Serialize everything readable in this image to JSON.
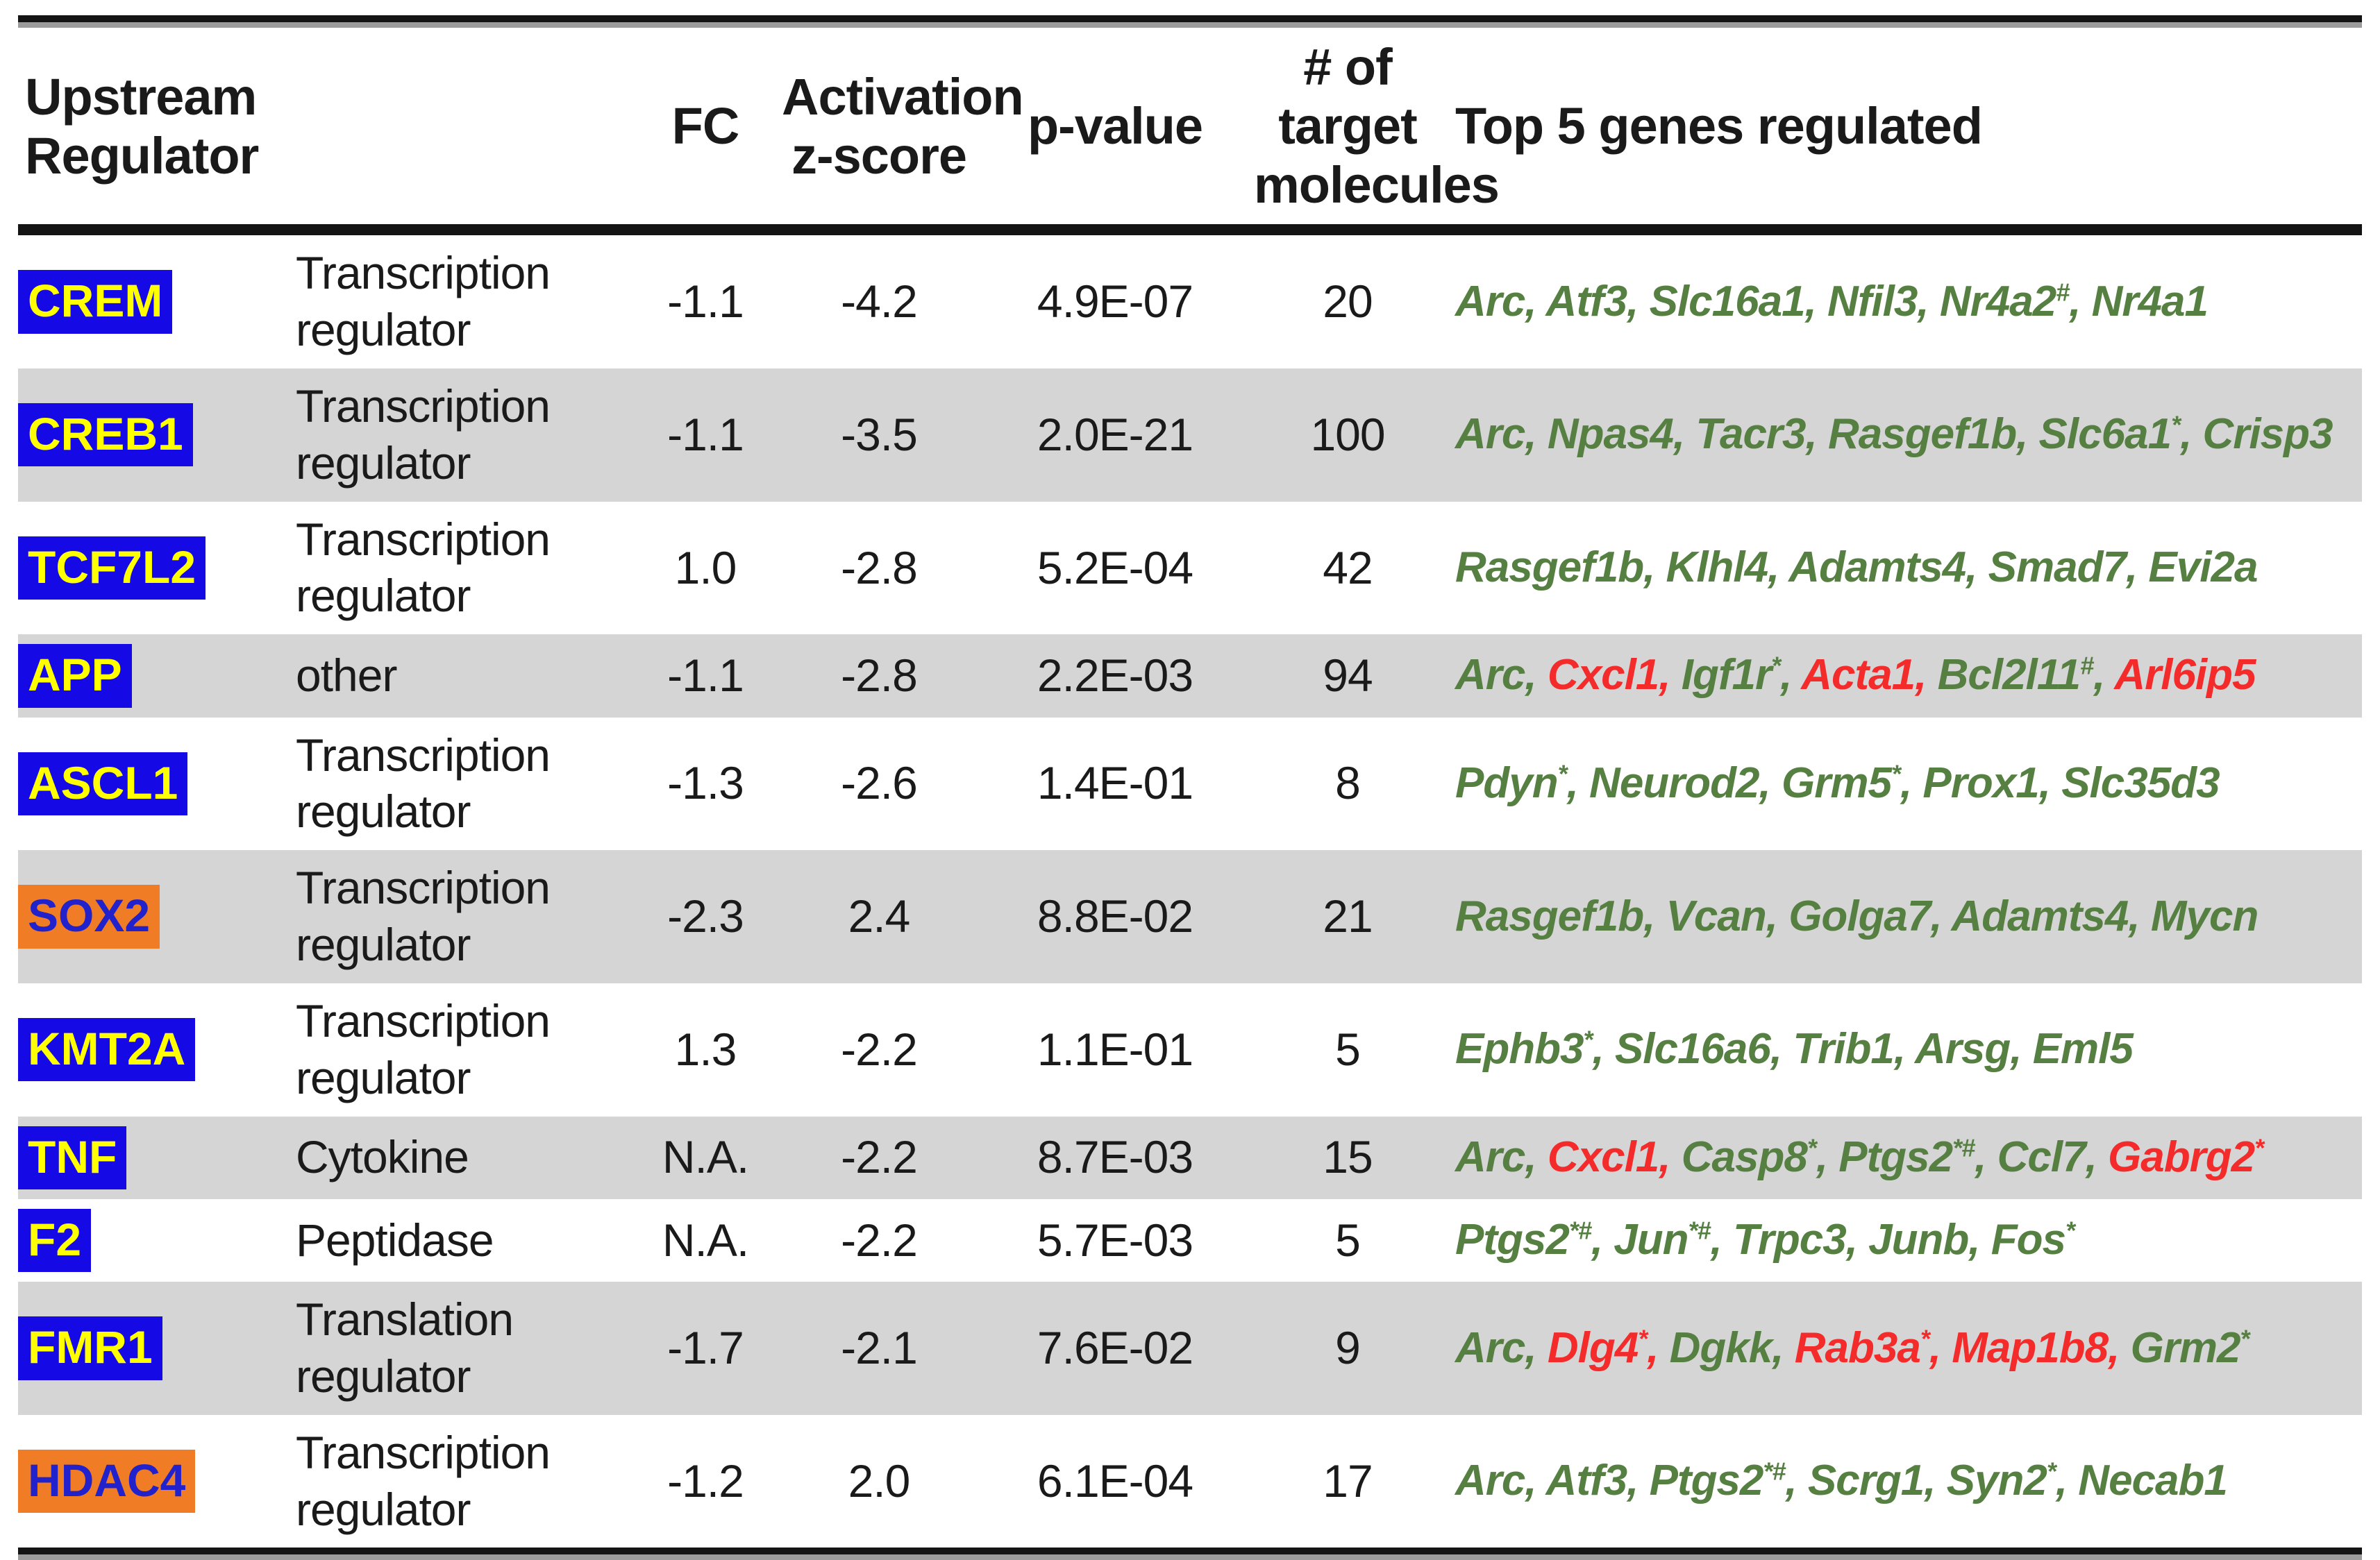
{
  "table": {
    "headers": {
      "upstream_regulator": "Upstream Regulator",
      "fc": "FC",
      "activation_z": "Activation z-score",
      "p_value": "p-value",
      "target_molecules": "# of target molecules",
      "top_genes": "Top 5 genes regulated"
    },
    "colors": {
      "inhibited_label_bg": "#1509E6",
      "inhibited_label_text": "#FFFF00",
      "activated_label_bg": "#F07D26",
      "activated_label_text": "#2222CC",
      "gene_green": "#567F42",
      "gene_red": "#F32B2B",
      "shaded_row_bg": "#D5D5D5",
      "text_black": "#1A1A1A"
    },
    "rows": [
      {
        "regulator": "CREM",
        "regulator_style": "blue",
        "type": "Transcription regulator",
        "fc": "-1.1",
        "z_score": "-4.2",
        "p_value": "4.9E-07",
        "n_targets": "20",
        "shaded": false,
        "genes": [
          {
            "name": "Arc",
            "sup": "",
            "color": "green"
          },
          {
            "name": "Atf3",
            "sup": "",
            "color": "green"
          },
          {
            "name": "Slc16a1",
            "sup": "",
            "color": "green"
          },
          {
            "name": "Nfil3",
            "sup": "",
            "color": "green"
          },
          {
            "name": "Nr4a2",
            "sup": "#",
            "color": "green"
          },
          {
            "name": "Nr4a1",
            "sup": "",
            "color": "green"
          }
        ]
      },
      {
        "regulator": "CREB1",
        "regulator_style": "blue",
        "type": "Transcription regulator",
        "fc": "-1.1",
        "z_score": "-3.5",
        "p_value": "2.0E-21",
        "n_targets": "100",
        "shaded": true,
        "genes": [
          {
            "name": "Arc",
            "sup": "",
            "color": "green"
          },
          {
            "name": "Npas4",
            "sup": "",
            "color": "green"
          },
          {
            "name": "Tacr3",
            "sup": "",
            "color": "green"
          },
          {
            "name": "Rasgef1b",
            "sup": "",
            "color": "green"
          },
          {
            "name": "Slc6a1",
            "sup": "*",
            "color": "green"
          },
          {
            "name": "Crisp3",
            "sup": "",
            "color": "green"
          }
        ]
      },
      {
        "regulator": "TCF7L2",
        "regulator_style": "blue",
        "type": "Transcription regulator",
        "fc": "1.0",
        "z_score": "-2.8",
        "p_value": "5.2E-04",
        "n_targets": "42",
        "shaded": false,
        "genes": [
          {
            "name": "Rasgef1b",
            "sup": "",
            "color": "green"
          },
          {
            "name": "Klhl4",
            "sup": "",
            "color": "green"
          },
          {
            "name": "Adamts4",
            "sup": "",
            "color": "green"
          },
          {
            "name": "Smad7",
            "sup": "",
            "color": "green"
          },
          {
            "name": "Evi2a",
            "sup": "",
            "color": "green"
          }
        ]
      },
      {
        "regulator": "APP",
        "regulator_style": "blue",
        "type": "other",
        "fc": "-1.1",
        "z_score": "-2.8",
        "p_value": "2.2E-03",
        "n_targets": "94",
        "shaded": true,
        "genes": [
          {
            "name": "Arc",
            "sup": "",
            "color": "green"
          },
          {
            "name": "Cxcl1",
            "sup": "",
            "color": "red"
          },
          {
            "name": "Igf1r",
            "sup": "*",
            "color": "green"
          },
          {
            "name": "Acta1",
            "sup": "",
            "color": "red"
          },
          {
            "name": "Bcl2l11",
            "sup": "#",
            "color": "green"
          },
          {
            "name": "Arl6ip5",
            "sup": "",
            "color": "red"
          }
        ]
      },
      {
        "regulator": "ASCL1",
        "regulator_style": "blue",
        "type": "Transcription regulator",
        "fc": "-1.3",
        "z_score": "-2.6",
        "p_value": "1.4E-01",
        "n_targets": "8",
        "shaded": false,
        "genes": [
          {
            "name": "Pdyn",
            "sup": "*",
            "color": "green"
          },
          {
            "name": "Neurod2",
            "sup": "",
            "color": "green"
          },
          {
            "name": "Grm5",
            "sup": "*",
            "color": "green"
          },
          {
            "name": "Prox1",
            "sup": "",
            "color": "green"
          },
          {
            "name": "Slc35d3",
            "sup": "",
            "color": "green"
          }
        ]
      },
      {
        "regulator": "SOX2",
        "regulator_style": "orange",
        "type": "Transcription regulator",
        "fc": "-2.3",
        "z_score": "2.4",
        "p_value": "8.8E-02",
        "n_targets": "21",
        "shaded": true,
        "genes": [
          {
            "name": "Rasgef1b",
            "sup": "",
            "color": "green"
          },
          {
            "name": "Vcan",
            "sup": "",
            "color": "green"
          },
          {
            "name": "Golga7",
            "sup": "",
            "color": "green"
          },
          {
            "name": "Adamts4",
            "sup": "",
            "color": "green"
          },
          {
            "name": "Mycn",
            "sup": "",
            "color": "green"
          }
        ]
      },
      {
        "regulator": "KMT2A",
        "regulator_style": "blue",
        "type": "Transcription regulator",
        "fc": "1.3",
        "z_score": "-2.2",
        "p_value": "1.1E-01",
        "n_targets": "5",
        "shaded": false,
        "genes": [
          {
            "name": "Ephb3",
            "sup": "*",
            "color": "green"
          },
          {
            "name": "Slc16a6",
            "sup": "",
            "color": "green"
          },
          {
            "name": "Trib1",
            "sup": "",
            "color": "green"
          },
          {
            "name": "Arsg",
            "sup": "",
            "color": "green"
          },
          {
            "name": "Eml5",
            "sup": "",
            "color": "green"
          }
        ]
      },
      {
        "regulator": "TNF",
        "regulator_style": "blue",
        "type": "Cytokine",
        "fc": "N.A.",
        "z_score": "-2.2",
        "p_value": "8.7E-03",
        "n_targets": "15",
        "shaded": true,
        "genes": [
          {
            "name": "Arc",
            "sup": "",
            "color": "green"
          },
          {
            "name": "Cxcl1",
            "sup": "",
            "color": "red"
          },
          {
            "name": "Casp8",
            "sup": "*",
            "color": "green"
          },
          {
            "name": "Ptgs2",
            "sup": "*#",
            "color": "green"
          },
          {
            "name": "Ccl7",
            "sup": "",
            "color": "green"
          },
          {
            "name": "Gabrg2",
            "sup": "*",
            "color": "red"
          }
        ]
      },
      {
        "regulator": "F2",
        "regulator_style": "blue",
        "type": "Peptidase",
        "fc": "N.A.",
        "z_score": "-2.2",
        "p_value": "5.7E-03",
        "n_targets": "5",
        "shaded": false,
        "genes": [
          {
            "name": "Ptgs2",
            "sup": "*#",
            "color": "green"
          },
          {
            "name": "Jun",
            "sup": "*#",
            "color": "green"
          },
          {
            "name": "Trpc3",
            "sup": "",
            "color": "green"
          },
          {
            "name": "Junb",
            "sup": "",
            "color": "green"
          },
          {
            "name": "Fos",
            "sup": "*",
            "color": "green"
          }
        ]
      },
      {
        "regulator": "FMR1",
        "regulator_style": "blue",
        "type": "Translation regulator",
        "fc": "-1.7",
        "z_score": "-2.1",
        "p_value": "7.6E-02",
        "n_targets": "9",
        "shaded": true,
        "genes": [
          {
            "name": "Arc",
            "sup": "",
            "color": "green"
          },
          {
            "name": "Dlg4",
            "sup": "*",
            "color": "red"
          },
          {
            "name": "Dgkk",
            "sup": "",
            "color": "green"
          },
          {
            "name": "Rab3a",
            "sup": "*",
            "color": "red"
          },
          {
            "name": "Map1b8",
            "sup": "",
            "color": "red"
          },
          {
            "name": "Grm2",
            "sup": "*",
            "color": "green"
          }
        ]
      },
      {
        "regulator": "HDAC4",
        "regulator_style": "orange",
        "type": "Transcription regulator",
        "fc": "-1.2",
        "z_score": "2.0",
        "p_value": "6.1E-04",
        "n_targets": "17",
        "shaded": false,
        "genes": [
          {
            "name": "Arc",
            "sup": "",
            "color": "green"
          },
          {
            "name": "Atf3",
            "sup": "",
            "color": "green"
          },
          {
            "name": "Ptgs2",
            "sup": "*#",
            "color": "green"
          },
          {
            "name": "Scrg1",
            "sup": "",
            "color": "green"
          },
          {
            "name": "Syn2",
            "sup": "*",
            "color": "green"
          },
          {
            "name": "Necab1",
            "sup": "",
            "color": "green"
          }
        ]
      }
    ]
  }
}
